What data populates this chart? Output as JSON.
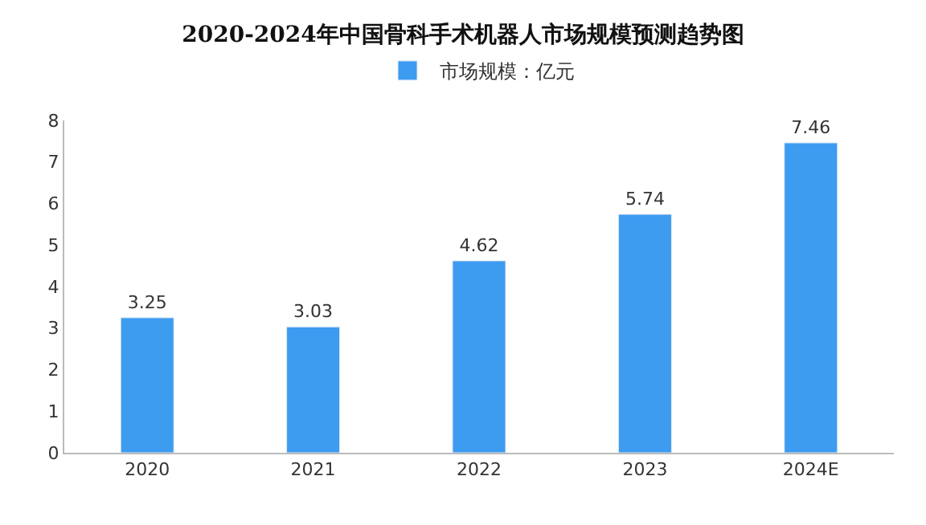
{
  "chart_data": {
    "type": "bar",
    "title": "2020-2024年中国骨科手术机器人市场规模预测趋势图",
    "categories": [
      "2020",
      "2021",
      "2022",
      "2023",
      "2024E"
    ],
    "series": [
      {
        "name": "市场规模：亿元",
        "color": "#3d9bf0",
        "values": [
          3.25,
          3.03,
          4.62,
          5.74,
          7.46
        ]
      }
    ],
    "ylim": [
      0,
      8
    ],
    "yticks": [
      0,
      1,
      2,
      3,
      4,
      5,
      6,
      7,
      8
    ],
    "legend": "top",
    "data_labels": true
  }
}
